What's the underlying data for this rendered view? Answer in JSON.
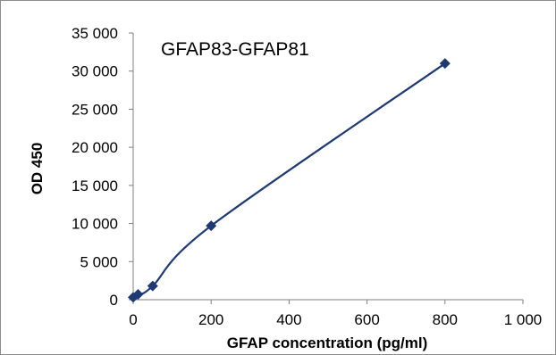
{
  "chart_data": {
    "type": "scatter",
    "title": "GFAP83-GFAP81",
    "xlabel": "GFAP concentration (pg/ml)",
    "ylabel": "OD 450",
    "xlim": [
      0,
      1000
    ],
    "ylim": [
      0,
      35000
    ],
    "x_ticks": [
      0,
      200,
      400,
      600,
      800,
      1000
    ],
    "x_tick_labels": [
      "0",
      "200",
      "400",
      "600",
      "800",
      "1 000"
    ],
    "y_ticks": [
      0,
      5000,
      10000,
      15000,
      20000,
      25000,
      30000,
      35000
    ],
    "y_tick_labels": [
      "0",
      "5 000",
      "10 000",
      "15 000",
      "20 000",
      "25 000",
      "30 000",
      "35 000"
    ],
    "grid": false,
    "marker": "diamond",
    "line": "smooth",
    "color": "#1f3a73",
    "series": [
      {
        "x": [
          0,
          12.5,
          50,
          200,
          800
        ],
        "y": [
          300,
          700,
          1800,
          9700,
          31000
        ]
      }
    ]
  }
}
